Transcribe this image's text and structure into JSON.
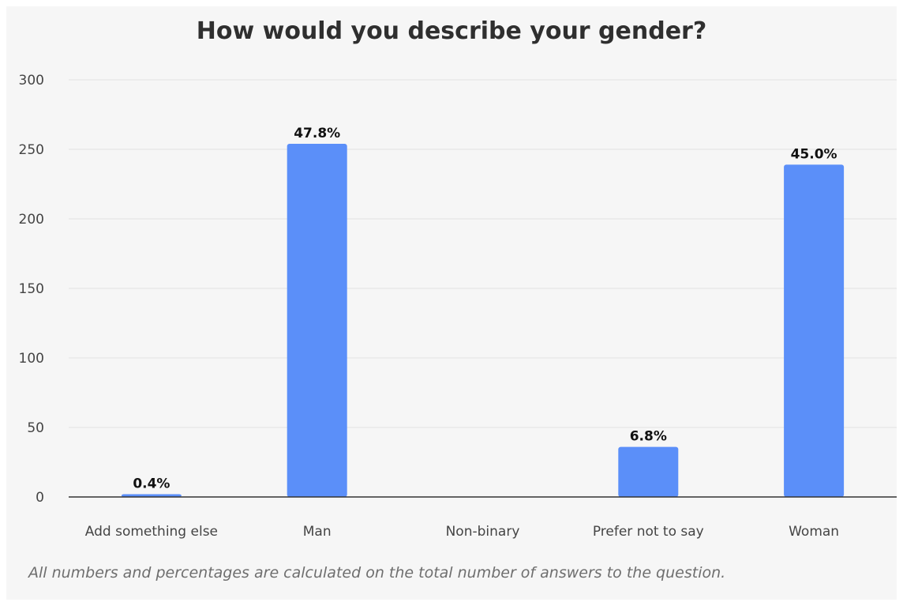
{
  "title": "How would you describe your gender?",
  "footnote": "All numbers and percentages are calculated on the total number of answers to the question.",
  "colors": {
    "bar": "#5b8ff9",
    "grid": "#e2e2e2",
    "axis": "#333333",
    "text": "#444444",
    "label": "#111111",
    "background": "#f6f6f6"
  },
  "chart_data": {
    "type": "bar",
    "title": "How would you describe your gender?",
    "categories": [
      "Add something else",
      "Man",
      "Non-binary",
      "Prefer not to say",
      "Woman"
    ],
    "values": [
      2,
      254,
      0,
      36,
      239
    ],
    "data_labels": [
      "0.4%",
      "47.8%",
      "",
      "6.8%",
      "45.0%"
    ],
    "xlabel": "",
    "ylabel": "",
    "ylim": [
      0,
      300
    ],
    "yticks": [
      0,
      50,
      100,
      150,
      200,
      250,
      300
    ],
    "grid": true,
    "legend": "none"
  }
}
